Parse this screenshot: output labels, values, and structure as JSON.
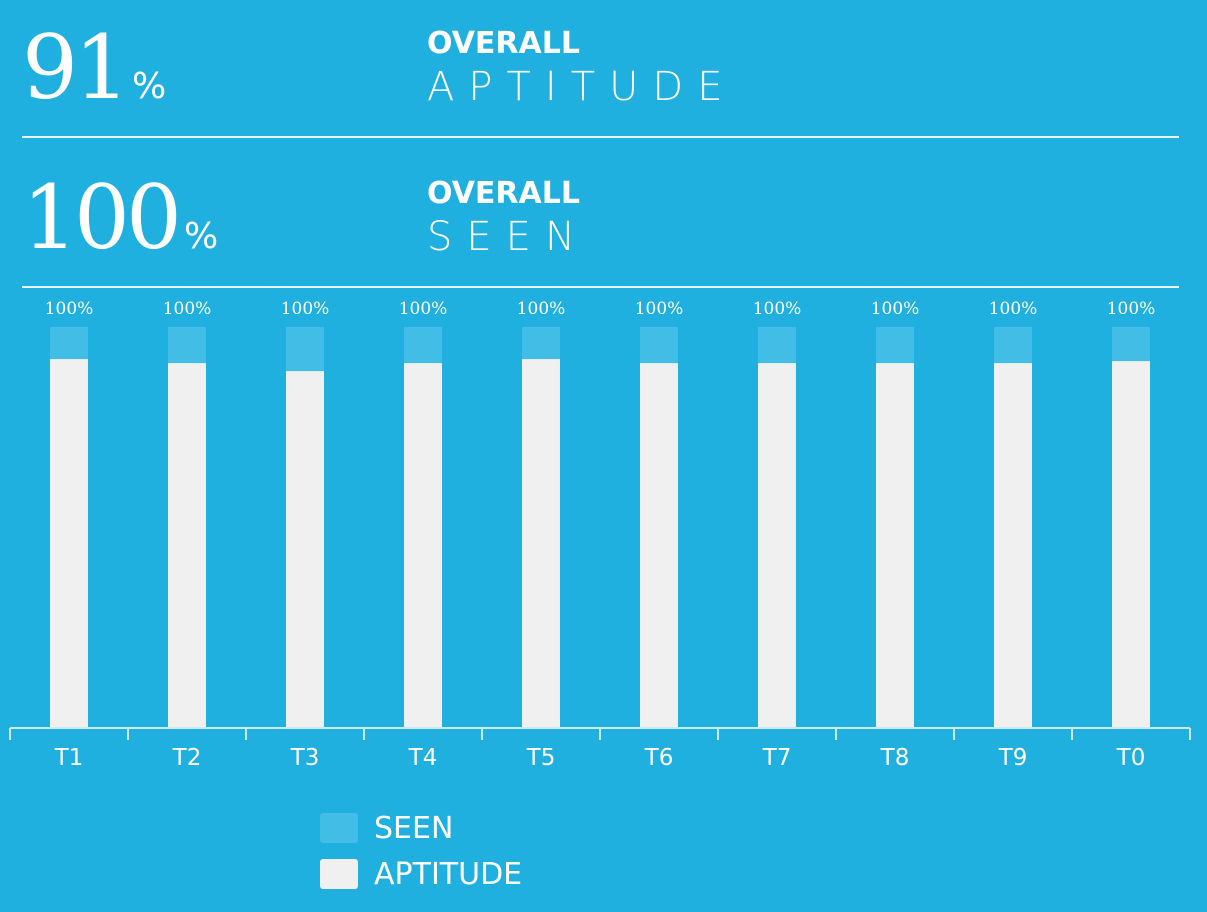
{
  "stats": [
    {
      "value": "91",
      "unit": "%",
      "label_top": "OVERALL",
      "label_bottom": "APTITUDE"
    },
    {
      "value": "100",
      "unit": "%",
      "label_top": "OVERALL",
      "label_bottom": "SEEN"
    }
  ],
  "chart_data": {
    "type": "bar",
    "categories": [
      "T1",
      "T2",
      "T3",
      "T4",
      "T5",
      "T6",
      "T7",
      "T8",
      "T9",
      "T0"
    ],
    "series": [
      {
        "name": "SEEN",
        "values": [
          100,
          100,
          100,
          100,
          100,
          100,
          100,
          100,
          100,
          100
        ]
      },
      {
        "name": "APTITUDE",
        "values": [
          92,
          91,
          89,
          91,
          92,
          91,
          91,
          91,
          91,
          91.5
        ]
      }
    ],
    "data_labels": [
      "100%",
      "100%",
      "100%",
      "100%",
      "100%",
      "100%",
      "100%",
      "100%",
      "100%",
      "100%"
    ],
    "ylim": [
      0,
      100
    ],
    "legend_placement": "bottom-center",
    "grid": false,
    "colors": {
      "background": "#20b0df",
      "seen": "#42bde6",
      "aptitude": "#f0f0f0",
      "axis": "#cde9f3"
    }
  }
}
